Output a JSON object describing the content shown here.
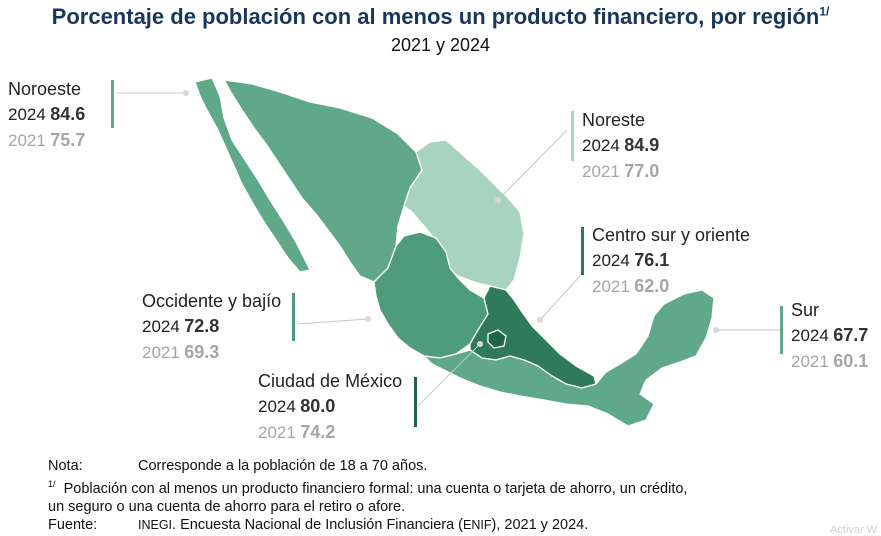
{
  "title": "Porcentaje de población con al menos un producto financiero, por región",
  "title_note": "1/",
  "subtitle": "2021 y 2024",
  "colors": {
    "title": "#17375e",
    "noroeste": "#5fa88a",
    "noreste": "#a8d3c0",
    "centro_sur_oriente": "#2e7a5a",
    "occidente_bajio": "#4e9c7b",
    "ciudad_de_mexico": "#1f6448",
    "sur": "#5fa88a",
    "border": "#ffffff",
    "leader": "#c8c8c8"
  },
  "regions": [
    {
      "key": "noroeste",
      "name": "Noroeste",
      "year_cur": "2024",
      "val_cur": "84.6",
      "year_prev": "2021",
      "val_prev": "75.7"
    },
    {
      "key": "noreste",
      "name": "Noreste",
      "year_cur": "2024",
      "val_cur": "84.9",
      "year_prev": "2021",
      "val_prev": "77.0"
    },
    {
      "key": "centro_sur_oriente",
      "name": "Centro sur y oriente",
      "year_cur": "2024",
      "val_cur": "76.1",
      "year_prev": "2021",
      "val_prev": "62.0"
    },
    {
      "key": "occidente_bajio",
      "name": "Occidente y bajío",
      "year_cur": "2024",
      "val_cur": "72.8",
      "year_prev": "2021",
      "val_prev": "69.3"
    },
    {
      "key": "ciudad_de_mexico",
      "name": "Ciudad de México",
      "year_cur": "2024",
      "val_cur": "80.0",
      "year_prev": "2021",
      "val_prev": "74.2"
    },
    {
      "key": "sur",
      "name": "Sur",
      "year_cur": "2024",
      "val_cur": "67.7",
      "year_prev": "2021",
      "val_prev": "60.1"
    }
  ],
  "notes": {
    "nota_key": "Nota:",
    "nota_text": "Corresponde a la población de 18 a 70 años.",
    "footnote_mark": "1/",
    "footnote_text_1": "Población con al menos un producto financiero formal: una cuenta o tarjeta de ahorro, un crédito,",
    "footnote_text_2": "un seguro o una cuenta de ahorro para el retiro o afore.",
    "fuente_key": "Fuente:",
    "fuente_org": "INEGI",
    "fuente_text_1": ". Encuesta Nacional de Inclusión Financiera (",
    "fuente_acr": "ENIF",
    "fuente_text_2": "), 2021 y 2024."
  },
  "watermark": "Activar W"
}
